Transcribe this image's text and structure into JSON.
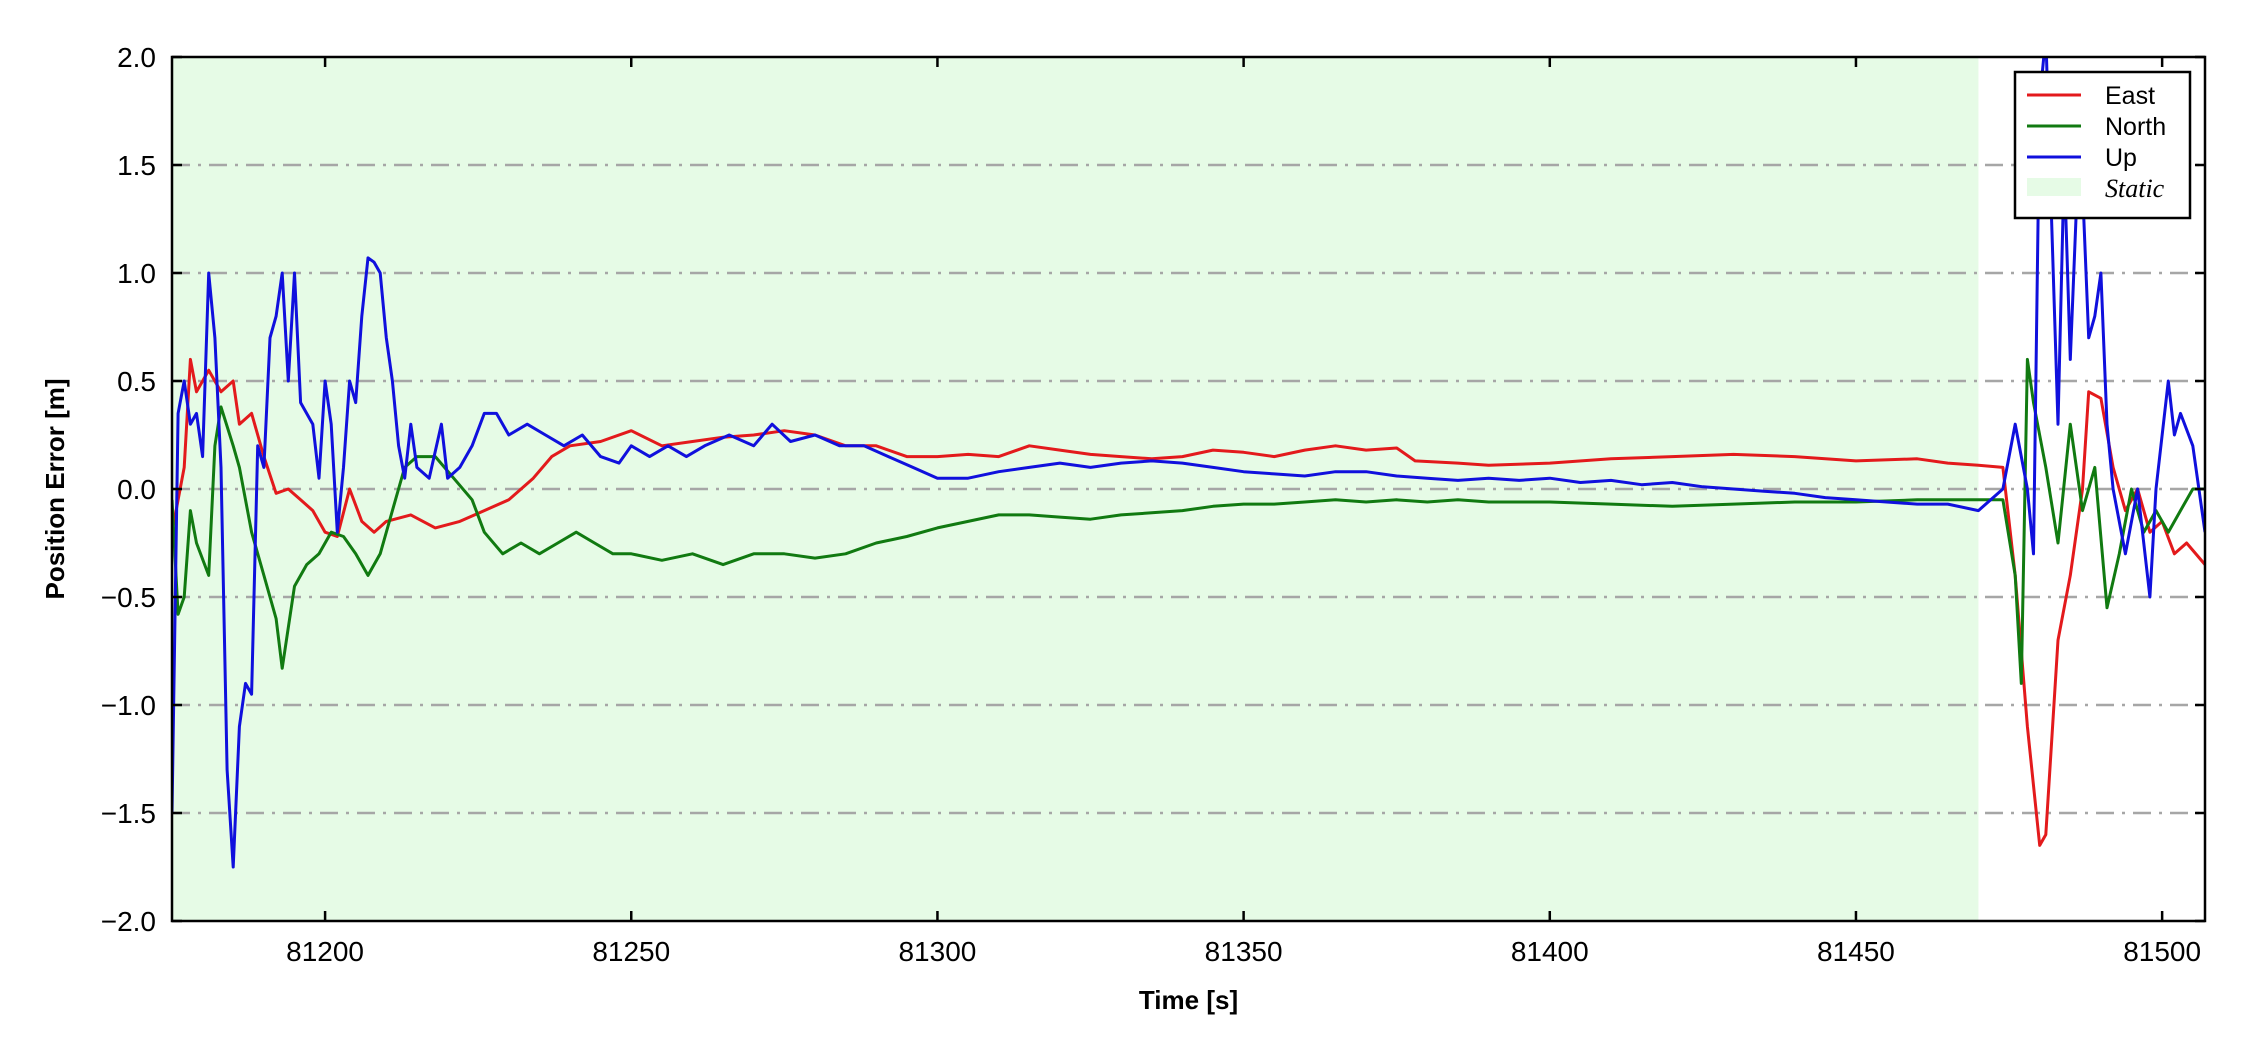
{
  "chart_data": {
    "type": "line",
    "xlabel": "Time [s]",
    "ylabel": "Position Error [m]",
    "xlim": [
      81175,
      81507
    ],
    "ylim": [
      -2.0,
      2.0
    ],
    "xticks": [
      81200,
      81250,
      81300,
      81350,
      81400,
      81450,
      81500
    ],
    "xtick_labels": [
      "81200",
      "81250",
      "81300",
      "81350",
      "81400",
      "81450",
      "81500"
    ],
    "yticks": [
      -2.0,
      -1.5,
      -1.0,
      -0.5,
      0.0,
      0.5,
      1.0,
      1.5,
      2.0
    ],
    "ytick_labels": [
      "−2.0",
      "−1.5",
      "−1.0",
      "−0.5",
      "0.0",
      "0.5",
      "1.0",
      "1.5",
      "2.0"
    ],
    "grid": "horizontal dash-dot",
    "legend_position": "top-right",
    "static_region": {
      "label": "Static",
      "x_start": 81175,
      "x_end": 81470,
      "color": "#e6fbe6"
    },
    "series": [
      {
        "name": "East",
        "color": "#e31a1c",
        "points": [
          [
            81175,
            -0.2
          ],
          [
            81177,
            0.1
          ],
          [
            81178,
            0.6
          ],
          [
            81179,
            0.45
          ],
          [
            81181,
            0.55
          ],
          [
            81183,
            0.45
          ],
          [
            81185,
            0.5
          ],
          [
            81186,
            0.3
          ],
          [
            81188,
            0.35
          ],
          [
            81190,
            0.15
          ],
          [
            81192,
            -0.02
          ],
          [
            81194,
            0.0
          ],
          [
            81196,
            -0.05
          ],
          [
            81198,
            -0.1
          ],
          [
            81200,
            -0.2
          ],
          [
            81202,
            -0.22
          ],
          [
            81204,
            0.0
          ],
          [
            81206,
            -0.15
          ],
          [
            81208,
            -0.2
          ],
          [
            81210,
            -0.15
          ],
          [
            81214,
            -0.12
          ],
          [
            81218,
            -0.18
          ],
          [
            81222,
            -0.15
          ],
          [
            81226,
            -0.1
          ],
          [
            81230,
            -0.05
          ],
          [
            81234,
            0.05
          ],
          [
            81237,
            0.15
          ],
          [
            81240,
            0.2
          ],
          [
            81245,
            0.22
          ],
          [
            81250,
            0.27
          ],
          [
            81255,
            0.2
          ],
          [
            81260,
            0.22
          ],
          [
            81265,
            0.24
          ],
          [
            81270,
            0.25
          ],
          [
            81275,
            0.27
          ],
          [
            81280,
            0.25
          ],
          [
            81285,
            0.2
          ],
          [
            81290,
            0.2
          ],
          [
            81295,
            0.15
          ],
          [
            81300,
            0.15
          ],
          [
            81305,
            0.16
          ],
          [
            81310,
            0.15
          ],
          [
            81315,
            0.2
          ],
          [
            81320,
            0.18
          ],
          [
            81325,
            0.16
          ],
          [
            81330,
            0.15
          ],
          [
            81335,
            0.14
          ],
          [
            81340,
            0.15
          ],
          [
            81345,
            0.18
          ],
          [
            81350,
            0.17
          ],
          [
            81355,
            0.15
          ],
          [
            81360,
            0.18
          ],
          [
            81365,
            0.2
          ],
          [
            81370,
            0.18
          ],
          [
            81375,
            0.19
          ],
          [
            81378,
            0.13
          ],
          [
            81385,
            0.12
          ],
          [
            81390,
            0.11
          ],
          [
            81400,
            0.12
          ],
          [
            81410,
            0.14
          ],
          [
            81420,
            0.15
          ],
          [
            81430,
            0.16
          ],
          [
            81440,
            0.15
          ],
          [
            81450,
            0.13
          ],
          [
            81460,
            0.14
          ],
          [
            81465,
            0.12
          ],
          [
            81470,
            0.11
          ],
          [
            81474,
            0.1
          ],
          [
            81476,
            -0.4
          ],
          [
            81478,
            -1.1
          ],
          [
            81480,
            -1.65
          ],
          [
            81481,
            -1.6
          ],
          [
            81483,
            -0.7
          ],
          [
            81485,
            -0.4
          ],
          [
            81487,
            0.0
          ],
          [
            81488,
            0.45
          ],
          [
            81490,
            0.42
          ],
          [
            81492,
            0.1
          ],
          [
            81494,
            -0.1
          ],
          [
            81496,
            0.0
          ],
          [
            81498,
            -0.2
          ],
          [
            81500,
            -0.15
          ],
          [
            81502,
            -0.3
          ],
          [
            81504,
            -0.25
          ],
          [
            81507,
            -0.35
          ]
        ]
      },
      {
        "name": "North",
        "color": "#117a11",
        "points": [
          [
            81175,
            -0.05
          ],
          [
            81176,
            -0.58
          ],
          [
            81177,
            -0.5
          ],
          [
            81178,
            -0.1
          ],
          [
            81179,
            -0.25
          ],
          [
            81181,
            -0.4
          ],
          [
            81182,
            0.2
          ],
          [
            81183,
            0.38
          ],
          [
            81185,
            0.2
          ],
          [
            81186,
            0.1
          ],
          [
            81188,
            -0.2
          ],
          [
            81190,
            -0.4
          ],
          [
            81192,
            -0.6
          ],
          [
            81193,
            -0.83
          ],
          [
            81195,
            -0.45
          ],
          [
            81197,
            -0.35
          ],
          [
            81199,
            -0.3
          ],
          [
            81201,
            -0.2
          ],
          [
            81203,
            -0.22
          ],
          [
            81205,
            -0.3
          ],
          [
            81207,
            -0.4
          ],
          [
            81209,
            -0.3
          ],
          [
            81211,
            -0.1
          ],
          [
            81213,
            0.1
          ],
          [
            81215,
            0.15
          ],
          [
            81218,
            0.15
          ],
          [
            81221,
            0.05
          ],
          [
            81224,
            -0.05
          ],
          [
            81226,
            -0.2
          ],
          [
            81229,
            -0.3
          ],
          [
            81232,
            -0.25
          ],
          [
            81235,
            -0.3
          ],
          [
            81238,
            -0.25
          ],
          [
            81241,
            -0.2
          ],
          [
            81244,
            -0.25
          ],
          [
            81247,
            -0.3
          ],
          [
            81250,
            -0.3
          ],
          [
            81255,
            -0.33
          ],
          [
            81260,
            -0.3
          ],
          [
            81265,
            -0.35
          ],
          [
            81270,
            -0.3
          ],
          [
            81275,
            -0.3
          ],
          [
            81280,
            -0.32
          ],
          [
            81285,
            -0.3
          ],
          [
            81290,
            -0.25
          ],
          [
            81295,
            -0.22
          ],
          [
            81300,
            -0.18
          ],
          [
            81305,
            -0.15
          ],
          [
            81310,
            -0.12
          ],
          [
            81315,
            -0.12
          ],
          [
            81320,
            -0.13
          ],
          [
            81325,
            -0.14
          ],
          [
            81330,
            -0.12
          ],
          [
            81335,
            -0.11
          ],
          [
            81340,
            -0.1
          ],
          [
            81345,
            -0.08
          ],
          [
            81350,
            -0.07
          ],
          [
            81355,
            -0.07
          ],
          [
            81360,
            -0.06
          ],
          [
            81365,
            -0.05
          ],
          [
            81370,
            -0.06
          ],
          [
            81375,
            -0.05
          ],
          [
            81380,
            -0.06
          ],
          [
            81385,
            -0.05
          ],
          [
            81390,
            -0.06
          ],
          [
            81400,
            -0.06
          ],
          [
            81410,
            -0.07
          ],
          [
            81420,
            -0.08
          ],
          [
            81430,
            -0.07
          ],
          [
            81440,
            -0.06
          ],
          [
            81450,
            -0.06
          ],
          [
            81460,
            -0.05
          ],
          [
            81470,
            -0.05
          ],
          [
            81474,
            -0.05
          ],
          [
            81476,
            -0.4
          ],
          [
            81477,
            -0.9
          ],
          [
            81478,
            0.6
          ],
          [
            81479,
            0.4
          ],
          [
            81481,
            0.1
          ],
          [
            81483,
            -0.25
          ],
          [
            81485,
            0.3
          ],
          [
            81487,
            -0.1
          ],
          [
            81489,
            0.1
          ],
          [
            81491,
            -0.55
          ],
          [
            81493,
            -0.3
          ],
          [
            81495,
            0.0
          ],
          [
            81497,
            -0.2
          ],
          [
            81499,
            -0.1
          ],
          [
            81501,
            -0.2
          ],
          [
            81503,
            -0.1
          ],
          [
            81505,
            0.0
          ],
          [
            81507,
            0.0
          ]
        ]
      },
      {
        "name": "Up",
        "color": "#1010dd",
        "points": [
          [
            81175,
            -1.5
          ],
          [
            81176,
            0.35
          ],
          [
            81177,
            0.5
          ],
          [
            81178,
            0.3
          ],
          [
            81179,
            0.35
          ],
          [
            81180,
            0.15
          ],
          [
            81181,
            1.0
          ],
          [
            81182,
            0.7
          ],
          [
            81183,
            0.1
          ],
          [
            81184,
            -1.3
          ],
          [
            81185,
            -1.75
          ],
          [
            81186,
            -1.1
          ],
          [
            81187,
            -0.9
          ],
          [
            81188,
            -0.95
          ],
          [
            81189,
            0.2
          ],
          [
            81190,
            0.1
          ],
          [
            81191,
            0.7
          ],
          [
            81192,
            0.8
          ],
          [
            81193,
            1.0
          ],
          [
            81194,
            0.5
          ],
          [
            81195,
            1.0
          ],
          [
            81196,
            0.4
          ],
          [
            81198,
            0.3
          ],
          [
            81199,
            0.05
          ],
          [
            81200,
            0.5
          ],
          [
            81201,
            0.3
          ],
          [
            81202,
            -0.2
          ],
          [
            81203,
            0.1
          ],
          [
            81204,
            0.5
          ],
          [
            81205,
            0.4
          ],
          [
            81206,
            0.8
          ],
          [
            81207,
            1.07
          ],
          [
            81208,
            1.05
          ],
          [
            81209,
            1.0
          ],
          [
            81210,
            0.7
          ],
          [
            81211,
            0.5
          ],
          [
            81212,
            0.2
          ],
          [
            81213,
            0.05
          ],
          [
            81214,
            0.3
          ],
          [
            81215,
            0.1
          ],
          [
            81217,
            0.05
          ],
          [
            81219,
            0.3
          ],
          [
            81220,
            0.05
          ],
          [
            81222,
            0.1
          ],
          [
            81224,
            0.2
          ],
          [
            81226,
            0.35
          ],
          [
            81228,
            0.35
          ],
          [
            81230,
            0.25
          ],
          [
            81233,
            0.3
          ],
          [
            81236,
            0.25
          ],
          [
            81239,
            0.2
          ],
          [
            81242,
            0.25
          ],
          [
            81245,
            0.15
          ],
          [
            81248,
            0.12
          ],
          [
            81250,
            0.2
          ],
          [
            81253,
            0.15
          ],
          [
            81256,
            0.2
          ],
          [
            81259,
            0.15
          ],
          [
            81262,
            0.2
          ],
          [
            81266,
            0.25
          ],
          [
            81270,
            0.2
          ],
          [
            81273,
            0.3
          ],
          [
            81276,
            0.22
          ],
          [
            81280,
            0.25
          ],
          [
            81284,
            0.2
          ],
          [
            81288,
            0.2
          ],
          [
            81292,
            0.15
          ],
          [
            81296,
            0.1
          ],
          [
            81300,
            0.05
          ],
          [
            81305,
            0.05
          ],
          [
            81310,
            0.08
          ],
          [
            81315,
            0.1
          ],
          [
            81320,
            0.12
          ],
          [
            81325,
            0.1
          ],
          [
            81330,
            0.12
          ],
          [
            81335,
            0.13
          ],
          [
            81340,
            0.12
          ],
          [
            81345,
            0.1
          ],
          [
            81350,
            0.08
          ],
          [
            81355,
            0.07
          ],
          [
            81360,
            0.06
          ],
          [
            81365,
            0.08
          ],
          [
            81370,
            0.08
          ],
          [
            81375,
            0.06
          ],
          [
            81380,
            0.05
          ],
          [
            81385,
            0.04
          ],
          [
            81390,
            0.05
          ],
          [
            81395,
            0.04
          ],
          [
            81400,
            0.05
          ],
          [
            81405,
            0.03
          ],
          [
            81410,
            0.04
          ],
          [
            81415,
            0.02
          ],
          [
            81420,
            0.03
          ],
          [
            81425,
            0.01
          ],
          [
            81430,
            0.0
          ],
          [
            81435,
            -0.01
          ],
          [
            81440,
            -0.02
          ],
          [
            81445,
            -0.04
          ],
          [
            81450,
            -0.05
          ],
          [
            81455,
            -0.06
          ],
          [
            81460,
            -0.07
          ],
          [
            81465,
            -0.07
          ],
          [
            81470,
            -0.1
          ],
          [
            81474,
            0.0
          ],
          [
            81476,
            0.3
          ],
          [
            81478,
            0.0
          ],
          [
            81479,
            -0.3
          ],
          [
            81480,
            1.8
          ],
          [
            81481,
            2.1
          ],
          [
            81482,
            1.2
          ],
          [
            81483,
            0.3
          ],
          [
            81484,
            1.5
          ],
          [
            81485,
            0.6
          ],
          [
            81486,
            1.3
          ],
          [
            81487,
            1.4
          ],
          [
            81488,
            0.7
          ],
          [
            81489,
            0.8
          ],
          [
            81490,
            1.0
          ],
          [
            81491,
            0.3
          ],
          [
            81492,
            0.0
          ],
          [
            81494,
            -0.3
          ],
          [
            81496,
            0.0
          ],
          [
            81498,
            -0.5
          ],
          [
            81499,
            0.0
          ],
          [
            81501,
            0.5
          ],
          [
            81502,
            0.25
          ],
          [
            81503,
            0.35
          ],
          [
            81505,
            0.2
          ],
          [
            81507,
            -0.2
          ]
        ]
      }
    ]
  }
}
